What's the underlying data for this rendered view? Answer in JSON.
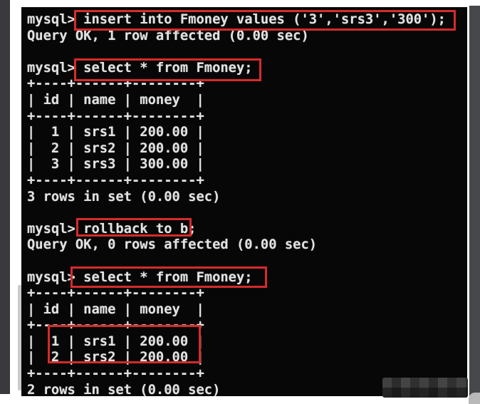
{
  "colors": {
    "terminal_background": "#070707",
    "terminal_text": "#e2e2e2",
    "highlight_red": "#d62b2b",
    "frame_dark_gray": "#3a3a3e",
    "page_background": "#ffffff"
  },
  "terminal": {
    "prompt": "mysql>",
    "lines": [
      "mysql> insert into Fmoney values ('3','srs3','300');",
      "Query OK, 1 row affected (0.00 sec)",
      "",
      "mysql> select * from Fmoney;",
      "+----+------+--------+",
      "| id | name | money  |",
      "+----+------+--------+",
      "|  1 | srs1 | 200.00 |",
      "|  2 | srs2 | 200.00 |",
      "|  3 | srs3 | 300.00 |",
      "+----+------+--------+",
      "3 rows in set (0.00 sec)",
      "",
      "mysql> rollback to b;",
      "Query OK, 0 rows affected (0.00 sec)",
      "",
      "mysql> select * from Fmoney;",
      "+----+------+--------+",
      "| id | name | money  |",
      "+----+------+--------+",
      "|  1 | srs1 | 200.00 |",
      "|  2 | srs2 | 200.00 |",
      "+----+------+--------+",
      "2 rows in set (0.00 sec)"
    ]
  },
  "result_table": {
    "columns": [
      "id",
      "name",
      "money"
    ],
    "rows_after_insert": [
      [
        "1",
        "srs1",
        "200.00"
      ],
      [
        "2",
        "srs2",
        "200.00"
      ],
      [
        "3",
        "srs3",
        "300.00"
      ]
    ],
    "rows_after_rollback": [
      [
        "1",
        "srs1",
        "200.00"
      ],
      [
        "2",
        "srs2",
        "200.00"
      ]
    ]
  },
  "highlighted_commands": [
    "insert into Fmoney values ('3','srs3','300');",
    "select * from Fmoney;",
    "rollback to b;",
    "select * from Fmoney;"
  ]
}
